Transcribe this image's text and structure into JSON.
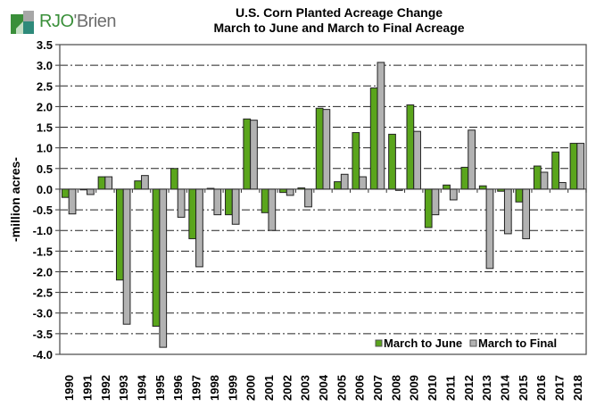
{
  "logo": {
    "brand_text_a": "RJO",
    "brand_text_b": "'Brien"
  },
  "chart_data": {
    "type": "bar",
    "title": "U.S. Corn Planted Acreage Change",
    "subtitle": "March to June and March to Final Acreage",
    "xlabel": "",
    "ylabel": "-million acres-",
    "ylim": [
      -4.0,
      3.5
    ],
    "yticks": [
      "3.5",
      "3.0",
      "2.5",
      "2.0",
      "1.5",
      "1.0",
      "0.5",
      "0.0",
      "-0.5",
      "-1.0",
      "-1.5",
      "-2.0",
      "-2.5",
      "-3.0",
      "-3.5",
      "-4.0"
    ],
    "ytick_values": [
      3.5,
      3.0,
      2.5,
      2.0,
      1.5,
      1.0,
      0.5,
      0.0,
      -0.5,
      -1.0,
      -1.5,
      -2.0,
      -2.5,
      -3.0,
      -3.5,
      -4.0
    ],
    "grid": "horizontal dash-dot",
    "legend_position": "bottom-right",
    "categories": [
      "1990",
      "1991",
      "1992",
      "1993",
      "1994",
      "1995",
      "1996",
      "1997",
      "1998",
      "1999",
      "2000",
      "2001",
      "2002",
      "2003",
      "2004",
      "2005",
      "2006",
      "2007",
      "2008",
      "2009",
      "2010",
      "2011",
      "2012",
      "2013",
      "2014",
      "2015",
      "2016",
      "2017",
      "2018"
    ],
    "series": [
      {
        "name": "March to June",
        "color": "#5aa51c",
        "values": [
          -0.2,
          0.0,
          0.3,
          -2.2,
          0.2,
          -3.32,
          0.5,
          -1.2,
          0.02,
          -0.62,
          1.7,
          -0.57,
          -0.08,
          0.03,
          1.96,
          0.18,
          1.37,
          2.45,
          1.33,
          2.04,
          -0.93,
          0.1,
          0.53,
          0.08,
          -0.05,
          -0.31,
          0.56,
          0.9,
          1.11
        ]
      },
      {
        "name": "March to Final",
        "color": "#b2b2b2",
        "values": [
          -0.6,
          -0.13,
          0.3,
          -3.27,
          0.33,
          -3.83,
          -0.68,
          -1.88,
          -0.62,
          -0.85,
          1.67,
          -1.0,
          -0.15,
          -0.43,
          1.93,
          0.36,
          0.3,
          3.07,
          -0.03,
          1.4,
          -0.62,
          -0.26,
          1.43,
          -1.92,
          -1.08,
          -1.2,
          0.41,
          0.16,
          1.11
        ]
      }
    ]
  }
}
